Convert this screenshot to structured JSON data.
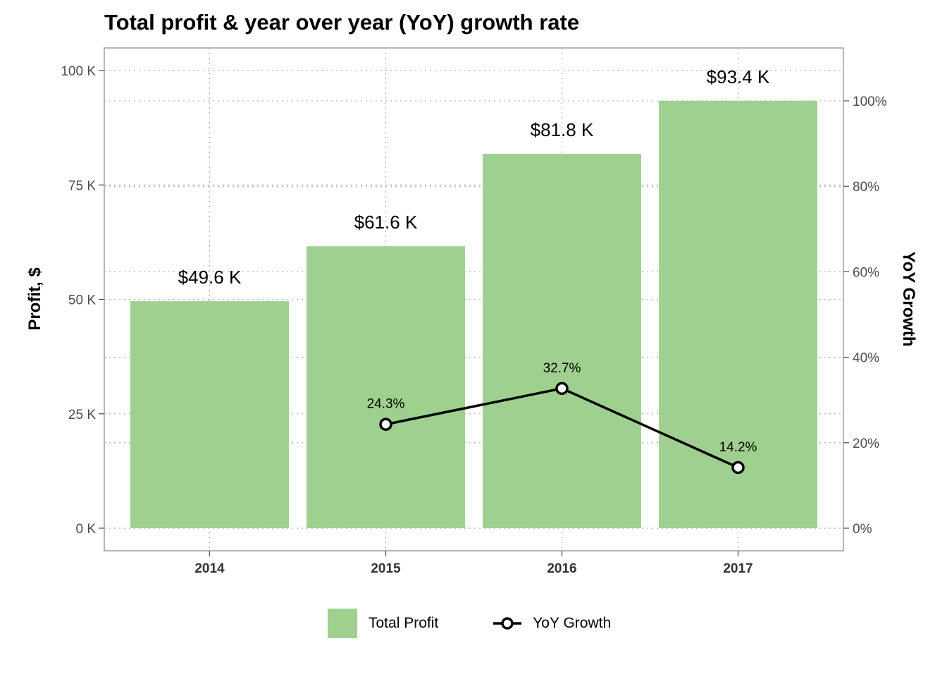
{
  "chart_data": {
    "type": "bar",
    "title": "Total profit & year over year (YoY) growth rate",
    "categories": [
      "2014",
      "2015",
      "2016",
      "2017"
    ],
    "series": [
      {
        "name": "Total Profit",
        "type": "bar",
        "axis": "left",
        "values": [
          49.6,
          61.6,
          81.8,
          93.4
        ],
        "labels": [
          "$49.6 K",
          "$61.6 K",
          "$81.8 K",
          "$93.4 K"
        ],
        "color": "#a0d08f"
      },
      {
        "name": "YoY Growth",
        "type": "line",
        "axis": "right",
        "values": [
          null,
          24.3,
          32.7,
          14.2
        ],
        "labels": [
          "",
          "24.3%",
          "32.7%",
          "14.2%"
        ],
        "color": "#000000"
      }
    ],
    "ylabel": "Profit, $",
    "y2label": "YoY Growth",
    "ylim": [
      0,
      104.9
    ],
    "y2lim": [
      0,
      106.9
    ],
    "yticks": [
      0,
      25,
      50,
      75,
      100
    ],
    "ytick_labels": [
      "0 K",
      "25 K",
      "50 K",
      "75 K",
      "100 K"
    ],
    "y2ticks": [
      0,
      20,
      40,
      60,
      80,
      100
    ],
    "y2tick_labels": [
      "0%",
      "20%",
      "40%",
      "60%",
      "80%",
      "100%"
    ],
    "grid": true,
    "legend_position": "bottom"
  },
  "legend": {
    "bar_label": "Total Profit",
    "line_label": "YoY Growth"
  }
}
